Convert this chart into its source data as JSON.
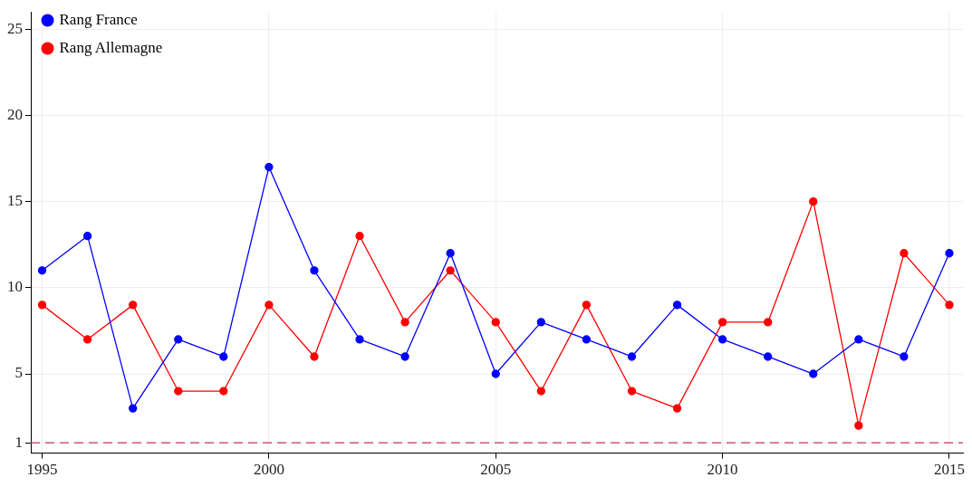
{
  "chart_data": {
    "type": "line",
    "x": [
      1995,
      1996,
      1997,
      1998,
      1999,
      2000,
      2001,
      2002,
      2003,
      2004,
      2005,
      2006,
      2007,
      2008,
      2009,
      2010,
      2011,
      2012,
      2013,
      2014,
      2015
    ],
    "series": [
      {
        "name": "Rang France",
        "color": "#0000ff",
        "values": [
          11,
          13,
          3,
          7,
          6,
          17,
          11,
          7,
          6,
          12,
          5,
          8,
          7,
          6,
          9,
          7,
          6,
          5,
          7,
          6,
          12
        ]
      },
      {
        "name": "Rang Allemagne",
        "color": "#ff0000",
        "values": [
          9,
          7,
          9,
          4,
          4,
          9,
          6,
          13,
          8,
          11,
          8,
          4,
          9,
          4,
          3,
          8,
          8,
          15,
          2,
          12,
          9
        ]
      }
    ],
    "xlim": [
      1994.75,
      2015.3
    ],
    "xticks": [
      1995,
      2000,
      2005,
      2010,
      2015
    ],
    "ylim": [
      0.4,
      26
    ],
    "yticks": [
      1,
      5,
      10,
      15,
      20,
      25
    ],
    "ref_lines": [
      {
        "axis": "y",
        "value": 1,
        "color": "#cc3366",
        "line_style": "dashed"
      }
    ],
    "grid": true,
    "legend": "top left",
    "marker": "circle",
    "line_style": "solid"
  }
}
